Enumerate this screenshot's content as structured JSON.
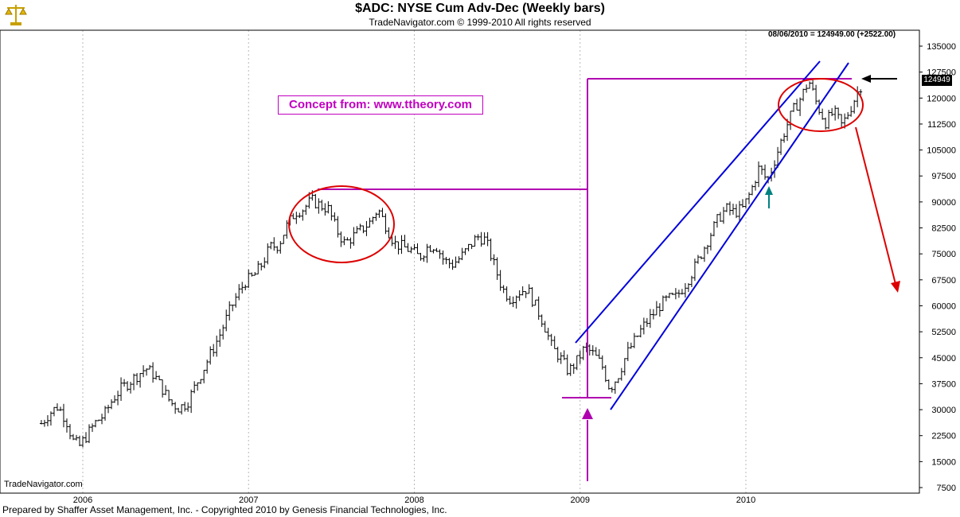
{
  "header": {
    "title": "$ADC:  NYSE Cum Adv-Dec  (Weekly bars)",
    "subtitle": "TradeNavigator.com © 1999-2010 All rights reserved",
    "logo_icon": "scales-icon"
  },
  "readout": "08/06/2010 = 124949.00 (+2522.00)",
  "last_value_label": "124949",
  "watermark": "TradeNavigator.com",
  "footer": "Prepared by Shaffer Asset Management, Inc. - Copyrighted 2010 by Genesis Financial Technologies, Inc.",
  "annotation_box": "Concept from: www.ttheory.com",
  "colors": {
    "bars": "#000000",
    "magenta": "#b000b0",
    "channel": "#0000dd",
    "ellipse": "#dd0000",
    "teal_arrow": "#008080",
    "grid": "#b8b8b8"
  },
  "chart_data": {
    "type": "ohlc",
    "title": "$ADC:  NYSE Cum Adv-Dec  (Weekly bars)",
    "x_tick_labels": [
      "2006",
      "2007",
      "2008",
      "2009",
      "2010"
    ],
    "y_tick_labels": [
      "135000",
      "127500",
      "120000",
      "112500",
      "105000",
      "97500",
      "90000",
      "82500",
      "75000",
      "67500",
      "60000",
      "52500",
      "45000",
      "37500",
      "30000",
      "22500",
      "15000",
      "7500"
    ],
    "ylim": [
      6000,
      139000
    ],
    "grid": "vertical dotted at years",
    "y_axis_position": "right",
    "series": [
      {
        "values": [
          [
            2005.75,
            26000
          ],
          [
            2005.8,
            29000
          ],
          [
            2005.85,
            31000
          ],
          [
            2005.9,
            27000
          ],
          [
            2005.94,
            21000
          ],
          [
            2005.98,
            19500
          ],
          [
            2006.03,
            23000
          ],
          [
            2006.08,
            26500
          ],
          [
            2006.13,
            28500
          ],
          [
            2006.18,
            33000
          ],
          [
            2006.23,
            36000
          ],
          [
            2006.28,
            38000
          ],
          [
            2006.33,
            40000
          ],
          [
            2006.38,
            42000
          ],
          [
            2006.43,
            40000
          ],
          [
            2006.48,
            36000
          ],
          [
            2006.53,
            32000
          ],
          [
            2006.58,
            30500
          ],
          [
            2006.63,
            32000
          ],
          [
            2006.68,
            37000
          ],
          [
            2006.73,
            42000
          ],
          [
            2006.78,
            47000
          ],
          [
            2006.83,
            52000
          ],
          [
            2006.88,
            58000
          ],
          [
            2006.93,
            63000
          ],
          [
            2006.98,
            67000
          ],
          [
            2007.03,
            68500
          ],
          [
            2007.08,
            72000
          ],
          [
            2007.13,
            77000
          ],
          [
            2007.18,
            77500
          ],
          [
            2007.23,
            83000
          ],
          [
            2007.28,
            87000
          ],
          [
            2007.33,
            88000
          ],
          [
            2007.38,
            90500
          ],
          [
            2007.43,
            89000
          ],
          [
            2007.48,
            88000
          ],
          [
            2007.53,
            82000
          ],
          [
            2007.58,
            78000
          ],
          [
            2007.63,
            80000
          ],
          [
            2007.68,
            82000
          ],
          [
            2007.73,
            84000
          ],
          [
            2007.78,
            88000
          ],
          [
            2007.83,
            83000
          ],
          [
            2007.88,
            78000
          ],
          [
            2007.93,
            77000
          ],
          [
            2007.98,
            76000
          ],
          [
            2008.03,
            74000
          ],
          [
            2008.08,
            77000
          ],
          [
            2008.13,
            77500
          ],
          [
            2008.18,
            73000
          ],
          [
            2008.23,
            72000
          ],
          [
            2008.28,
            74000
          ],
          [
            2008.33,
            77000
          ],
          [
            2008.38,
            80000
          ],
          [
            2008.43,
            79000
          ],
          [
            2008.48,
            72000
          ],
          [
            2008.53,
            65000
          ],
          [
            2008.58,
            62000
          ],
          [
            2008.63,
            64000
          ],
          [
            2008.68,
            65000
          ],
          [
            2008.73,
            60000
          ],
          [
            2008.78,
            55000
          ],
          [
            2008.83,
            48000
          ],
          [
            2008.88,
            45000
          ],
          [
            2008.93,
            41000
          ],
          [
            2008.98,
            44000
          ],
          [
            2009.03,
            48000
          ],
          [
            2009.08,
            46000
          ],
          [
            2009.13,
            43000
          ],
          [
            2009.18,
            36000
          ],
          [
            2009.23,
            40000
          ],
          [
            2009.28,
            46000
          ],
          [
            2009.33,
            50000
          ],
          [
            2009.38,
            54000
          ],
          [
            2009.43,
            57000
          ],
          [
            2009.48,
            60000
          ],
          [
            2009.53,
            62000
          ],
          [
            2009.58,
            62500
          ],
          [
            2009.63,
            66000
          ],
          [
            2009.68,
            70000
          ],
          [
            2009.73,
            75000
          ],
          [
            2009.78,
            80000
          ],
          [
            2009.83,
            85000
          ],
          [
            2009.88,
            88000
          ],
          [
            2009.93,
            87000
          ],
          [
            2009.98,
            88000
          ],
          [
            2010.03,
            93000
          ],
          [
            2010.08,
            100000
          ],
          [
            2010.13,
            96000
          ],
          [
            2010.18,
            103000
          ],
          [
            2010.23,
            110000
          ],
          [
            2010.28,
            116000
          ],
          [
            2010.33,
            120000
          ],
          [
            2010.38,
            125000
          ],
          [
            2010.43,
            118000
          ],
          [
            2010.48,
            113000
          ],
          [
            2010.53,
            116000
          ],
          [
            2010.58,
            112000
          ],
          [
            2010.63,
            117000
          ],
          [
            2010.68,
            122500
          ],
          [
            2010.71,
            124949
          ]
        ]
      }
    ]
  }
}
